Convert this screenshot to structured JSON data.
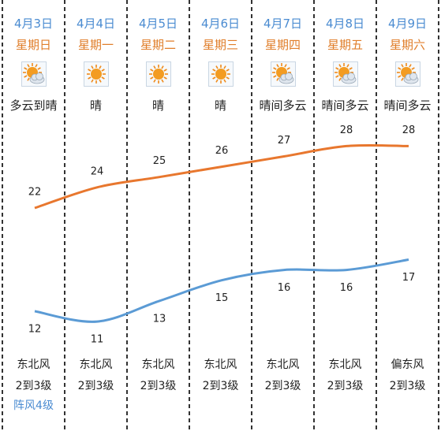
{
  "days": [
    {
      "date": "4月3日",
      "weekday": "星期日",
      "icon": "cloudy-sun-icon",
      "condition": "多云到晴",
      "high": 22,
      "low": 12,
      "wind_dir": "东北风",
      "wind_force": "2到3级",
      "gust": "阵风4级"
    },
    {
      "date": "4月4日",
      "weekday": "星期一",
      "icon": "sun-icon",
      "condition": "晴",
      "high": 24,
      "low": 11,
      "wind_dir": "东北风",
      "wind_force": "2到3级",
      "gust": ""
    },
    {
      "date": "4月5日",
      "weekday": "星期二",
      "icon": "sun-icon",
      "condition": "晴",
      "high": 25,
      "low": 13,
      "wind_dir": "东北风",
      "wind_force": "2到3级",
      "gust": ""
    },
    {
      "date": "4月6日",
      "weekday": "星期三",
      "icon": "sun-icon",
      "condition": "晴",
      "high": 26,
      "low": 15,
      "wind_dir": "东北风",
      "wind_force": "2到3级",
      "gust": ""
    },
    {
      "date": "4月7日",
      "weekday": "星期四",
      "icon": "cloudy-sun-icon",
      "condition": "晴间多云",
      "high": 27,
      "low": 16,
      "wind_dir": "东北风",
      "wind_force": "2到3级",
      "gust": ""
    },
    {
      "date": "4月8日",
      "weekday": "星期五",
      "icon": "cloudy-sun-icon",
      "condition": "晴间多云",
      "high": 28,
      "low": 16,
      "wind_dir": "东北风",
      "wind_force": "2到3级",
      "gust": ""
    },
    {
      "date": "4月9日",
      "weekday": "星期六",
      "icon": "cloudy-sun-icon",
      "condition": "晴间多云",
      "high": 28,
      "low": 17,
      "wind_dir": "偏东风",
      "wind_force": "2到3级",
      "gust": ""
    }
  ],
  "colors": {
    "high_line": "#e8772e",
    "low_line": "#5b9bd5",
    "date": "#4a8bd1",
    "weekday": "#e07e2a",
    "divider": "#000000"
  },
  "chart_data": {
    "type": "line",
    "categories": [
      "4月3日",
      "4月4日",
      "4月5日",
      "4月6日",
      "4月7日",
      "4月8日",
      "4月9日"
    ],
    "series": [
      {
        "values": [
          22,
          24,
          25,
          26,
          27,
          28,
          28
        ]
      },
      {
        "values": [
          12,
          11,
          13,
          15,
          16,
          16,
          17
        ]
      }
    ],
    "grid": false,
    "legend": "none"
  }
}
